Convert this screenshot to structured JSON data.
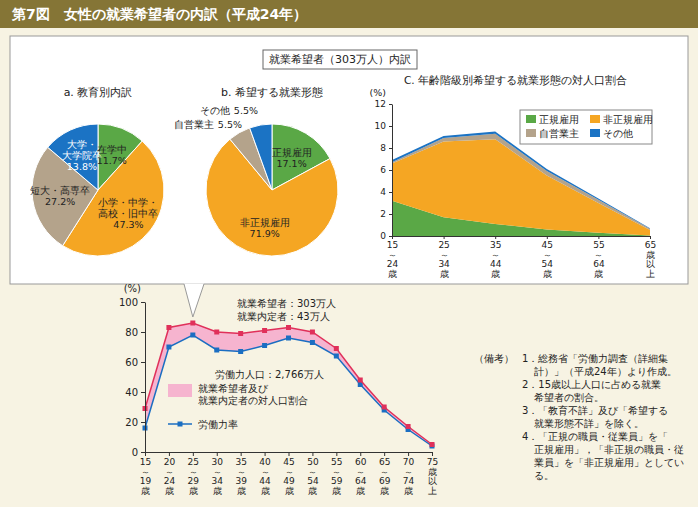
{
  "title": "第7図　女性の就業希望者の内訳（平成24年）",
  "panel_title": "就業希望者（303万人）内訳",
  "notes_label": "（備考）",
  "notes": [
    "1．総務省「労働力調査（詳細集計）」（平成24年）より作成。",
    "2．15歳以上人口に占める就業希望者の割合。",
    "3．「教育不詳」及び「希望する就業形態不詳」を除く。",
    "4．「正規の職員・従業員」を「正規雇用」，「非正規の職員・従業員」を「非正規雇用」としている。"
  ],
  "chart_data": [
    {
      "type": "pie",
      "title": "a. 教育別内訳",
      "categories": [
        "在学中",
        "小学・中学・高校・旧中卒",
        "短大・高専卒",
        "大学・大学院卒"
      ],
      "values": [
        11.7,
        47.3,
        27.2,
        13.8
      ],
      "value_labels": [
        "11.7%",
        "47.3%",
        "27.2%",
        "13.8%"
      ],
      "colors": [
        "#5aa846",
        "#f5a623",
        "#b4a38b",
        "#1b73c4"
      ],
      "data_labels": true
    },
    {
      "type": "pie",
      "title": "b. 希望する就業形態",
      "categories": [
        "正規雇用",
        "非正規雇用",
        "自営業主",
        "その他"
      ],
      "values": [
        17.1,
        71.9,
        5.5,
        5.5
      ],
      "value_labels": [
        "17.1%",
        "71.9%",
        "5.5%",
        "5.5%"
      ],
      "colors": [
        "#5aa846",
        "#f5a623",
        "#b4a38b",
        "#1b73c4"
      ],
      "data_labels": true
    },
    {
      "type": "area",
      "stacked": true,
      "title": "C. 年齢階級別希望する就業形態の対人口割合",
      "y_label": "(%)",
      "categories": [
        "15～24歳",
        "25～34歳",
        "35～44歳",
        "45～54歳",
        "55～64歳",
        "65歳以上"
      ],
      "series": [
        {
          "name": "正規雇用",
          "color": "#5aa846",
          "values": [
            3.2,
            1.7,
            1.1,
            0.6,
            0.3,
            0.05
          ]
        },
        {
          "name": "非正規雇用",
          "color": "#f5a623",
          "values": [
            3.4,
            6.9,
            7.7,
            4.9,
            2.7,
            0.5
          ]
        },
        {
          "name": "自営業主",
          "color": "#b4a38b",
          "values": [
            0.1,
            0.3,
            0.5,
            0.4,
            0.3,
            0.1
          ]
        },
        {
          "name": "その他",
          "color": "#1b73c4",
          "values": [
            0.2,
            0.2,
            0.2,
            0.2,
            0.1,
            0.05
          ]
        }
      ],
      "ylim": [
        0,
        12
      ],
      "yticks": [
        0,
        2,
        4,
        6,
        8,
        10,
        12
      ],
      "legend": "upper right"
    },
    {
      "type": "line",
      "stacked": true,
      "y_label": "(%)",
      "categories": [
        "15～19歳",
        "20～24歳",
        "25～29歳",
        "30～34歳",
        "35～39歳",
        "40～44歳",
        "45～49歳",
        "50～54歳",
        "55～59歳",
        "60～64歳",
        "65～69歳",
        "70～74歳",
        "75歳以上"
      ],
      "series": [
        {
          "name": "労働力率",
          "type": "line",
          "marker": "square",
          "color": "#1b6ec2",
          "values": [
            16,
            70,
            78,
            68,
            67,
            71,
            76,
            73,
            64,
            45,
            28,
            15,
            4
          ]
        },
        {
          "name": "就業希望者及び就業内定者の対人口割合",
          "type": "area",
          "marker": "square",
          "color": "#f6b4cf",
          "values": [
            13,
            13,
            8,
            12,
            12,
            10,
            7,
            7,
            5,
            3,
            2,
            2,
            1
          ]
        }
      ],
      "ylim": [
        0,
        100
      ],
      "yticks": [
        0,
        20,
        40,
        60,
        80,
        100
      ],
      "annotations": [
        "就業希望者：303万人",
        "就業内定者：43万人",
        "労働力人口：2,766万人"
      ],
      "legend": "lower left"
    }
  ]
}
